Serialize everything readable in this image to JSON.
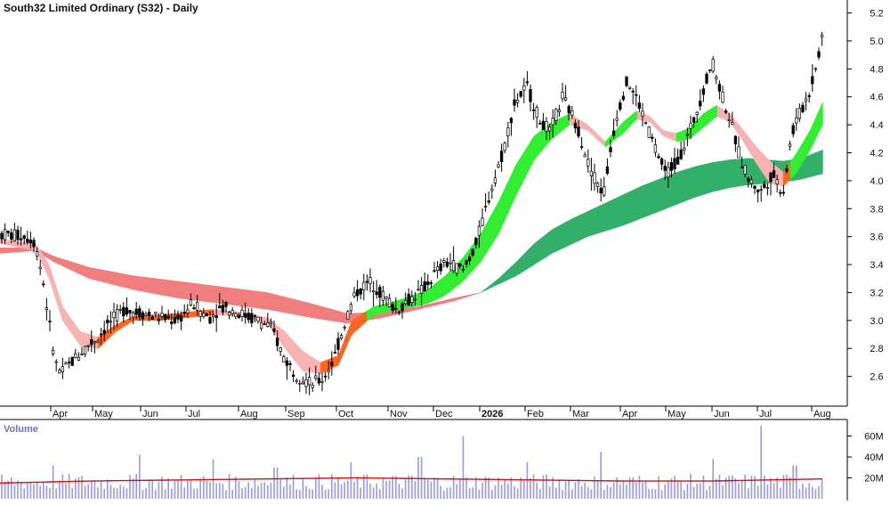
{
  "title": "South32 Limited Ordinary (S32) - Daily",
  "volume_label": "Volume",
  "chart_data": {
    "type": "line",
    "title": "South32 Limited Ordinary (S32) - Daily",
    "x_tick_labels": [
      "Apr",
      "May",
      "Jun",
      "Jul",
      "Aug",
      "Sep",
      "Oct",
      "Nov",
      "Dec",
      "2026",
      "Feb",
      "Mar",
      "Apr",
      "May",
      "Jun",
      "Jul",
      "Aug"
    ],
    "price_axis": {
      "ticks": [
        2.6,
        2.8,
        3.0,
        3.2,
        3.4,
        3.6,
        3.8,
        4.0,
        4.2,
        4.4,
        4.6,
        4.8,
        5.0,
        5.2
      ],
      "ylim": [
        2.4,
        5.28
      ],
      "grid": false
    },
    "volume_axis": {
      "tick_labels": [
        "20M",
        "40M",
        "60M"
      ],
      "ticks": [
        20,
        40,
        60
      ],
      "ylim": [
        0,
        75
      ]
    },
    "price_path": [
      [
        0,
        3.62
      ],
      [
        30,
        3.6
      ],
      [
        40,
        3.55
      ],
      [
        48,
        3.3
      ],
      [
        55,
        3.0
      ],
      [
        62,
        2.7
      ],
      [
        68,
        2.62
      ],
      [
        80,
        2.7
      ],
      [
        95,
        2.8
      ],
      [
        110,
        2.88
      ],
      [
        125,
        3.0
      ],
      [
        140,
        3.08
      ],
      [
        160,
        3.05
      ],
      [
        180,
        3.02
      ],
      [
        200,
        3.0
      ],
      [
        215,
        3.12
      ],
      [
        235,
        3.02
      ],
      [
        250,
        3.1
      ],
      [
        270,
        3.05
      ],
      [
        290,
        3.0
      ],
      [
        305,
        2.95
      ],
      [
        320,
        2.72
      ],
      [
        335,
        2.6
      ],
      [
        350,
        2.55
      ],
      [
        362,
        2.58
      ],
      [
        375,
        2.72
      ],
      [
        388,
        3.0
      ],
      [
        400,
        3.2
      ],
      [
        415,
        3.28
      ],
      [
        430,
        3.18
      ],
      [
        445,
        3.08
      ],
      [
        460,
        3.15
      ],
      [
        475,
        3.22
      ],
      [
        490,
        3.35
      ],
      [
        505,
        3.42
      ],
      [
        520,
        3.35
      ],
      [
        535,
        3.55
      ],
      [
        550,
        3.9
      ],
      [
        565,
        4.2
      ],
      [
        578,
        4.55
      ],
      [
        592,
        4.68
      ],
      [
        605,
        4.45
      ],
      [
        618,
        4.35
      ],
      [
        632,
        4.6
      ],
      [
        648,
        4.4
      ],
      [
        662,
        4.1
      ],
      [
        678,
        3.9
      ],
      [
        692,
        4.45
      ],
      [
        705,
        4.72
      ],
      [
        718,
        4.55
      ],
      [
        732,
        4.3
      ],
      [
        748,
        4.05
      ],
      [
        762,
        4.15
      ],
      [
        775,
        4.35
      ],
      [
        788,
        4.6
      ],
      [
        800,
        4.85
      ],
      [
        812,
        4.6
      ],
      [
        822,
        4.4
      ],
      [
        832,
        4.15
      ],
      [
        842,
        4.0
      ],
      [
        855,
        3.92
      ],
      [
        868,
        4.05
      ],
      [
        880,
        3.92
      ],
      [
        890,
        4.35
      ],
      [
        900,
        4.5
      ],
      [
        910,
        4.65
      ],
      [
        918,
        4.85
      ],
      [
        924,
        5.05
      ]
    ],
    "ema_bands": [
      {
        "name": "long-term",
        "upper": [
          [
            0,
            3.52
          ],
          [
            40,
            3.52
          ],
          [
            60,
            3.46
          ],
          [
            100,
            3.38
          ],
          [
            150,
            3.32
          ],
          [
            200,
            3.28
          ],
          [
            250,
            3.24
          ],
          [
            300,
            3.2
          ],
          [
            350,
            3.12
          ],
          [
            390,
            3.05
          ],
          [
            430,
            3.06
          ],
          [
            470,
            3.1
          ],
          [
            510,
            3.16
          ],
          [
            540,
            3.2
          ],
          [
            560,
            3.3
          ],
          [
            580,
            3.42
          ],
          [
            600,
            3.55
          ],
          [
            620,
            3.65
          ],
          [
            640,
            3.72
          ],
          [
            660,
            3.78
          ],
          [
            680,
            3.84
          ],
          [
            700,
            3.9
          ],
          [
            720,
            3.96
          ],
          [
            740,
            4.01
          ],
          [
            760,
            4.06
          ],
          [
            780,
            4.1
          ],
          [
            800,
            4.13
          ],
          [
            820,
            4.15
          ],
          [
            840,
            4.16
          ],
          [
            860,
            4.15
          ],
          [
            880,
            4.14
          ],
          [
            900,
            4.16
          ],
          [
            924,
            4.22
          ]
        ],
        "lower": [
          [
            0,
            3.48
          ],
          [
            40,
            3.5
          ],
          [
            60,
            3.42
          ],
          [
            100,
            3.3
          ],
          [
            150,
            3.22
          ],
          [
            200,
            3.16
          ],
          [
            250,
            3.12
          ],
          [
            300,
            3.08
          ],
          [
            350,
            3.02
          ],
          [
            390,
            2.98
          ],
          [
            430,
            3.02
          ],
          [
            470,
            3.08
          ],
          [
            510,
            3.14
          ],
          [
            540,
            3.2
          ],
          [
            560,
            3.26
          ],
          [
            580,
            3.32
          ],
          [
            600,
            3.4
          ],
          [
            620,
            3.48
          ],
          [
            640,
            3.54
          ],
          [
            660,
            3.6
          ],
          [
            680,
            3.64
          ],
          [
            700,
            3.68
          ],
          [
            720,
            3.73
          ],
          [
            740,
            3.78
          ],
          [
            760,
            3.83
          ],
          [
            780,
            3.88
          ],
          [
            800,
            3.92
          ],
          [
            820,
            3.95
          ],
          [
            840,
            3.97
          ],
          [
            860,
            3.98
          ],
          [
            880,
            3.99
          ],
          [
            900,
            4.01
          ],
          [
            924,
            4.05
          ]
        ]
      },
      {
        "name": "short-term",
        "upper": [
          [
            0,
            3.58
          ],
          [
            40,
            3.55
          ],
          [
            55,
            3.4
          ],
          [
            70,
            3.1
          ],
          [
            90,
            2.92
          ],
          [
            110,
            2.88
          ],
          [
            130,
            2.97
          ],
          [
            150,
            3.03
          ],
          [
            180,
            3.04
          ],
          [
            210,
            3.06
          ],
          [
            240,
            3.08
          ],
          [
            270,
            3.06
          ],
          [
            300,
            3.02
          ],
          [
            320,
            2.92
          ],
          [
            340,
            2.78
          ],
          [
            360,
            2.7
          ],
          [
            380,
            2.75
          ],
          [
            395,
            3.0
          ],
          [
            420,
            3.1
          ],
          [
            450,
            3.15
          ],
          [
            480,
            3.22
          ],
          [
            500,
            3.32
          ],
          [
            520,
            3.45
          ],
          [
            540,
            3.62
          ],
          [
            560,
            3.85
          ],
          [
            580,
            4.12
          ],
          [
            600,
            4.32
          ],
          [
            620,
            4.42
          ],
          [
            640,
            4.48
          ],
          [
            660,
            4.4
          ],
          [
            680,
            4.28
          ],
          [
            700,
            4.42
          ],
          [
            715,
            4.5
          ],
          [
            730,
            4.46
          ],
          [
            745,
            4.36
          ],
          [
            760,
            4.34
          ],
          [
            775,
            4.38
          ],
          [
            790,
            4.48
          ],
          [
            805,
            4.54
          ],
          [
            820,
            4.48
          ],
          [
            835,
            4.36
          ],
          [
            850,
            4.24
          ],
          [
            865,
            4.14
          ],
          [
            880,
            4.06
          ],
          [
            895,
            4.2
          ],
          [
            910,
            4.36
          ],
          [
            924,
            4.56
          ]
        ],
        "lower": [
          [
            0,
            3.55
          ],
          [
            40,
            3.5
          ],
          [
            55,
            3.3
          ],
          [
            70,
            3.0
          ],
          [
            90,
            2.82
          ],
          [
            110,
            2.8
          ],
          [
            130,
            2.92
          ],
          [
            150,
            3.0
          ],
          [
            180,
            3.0
          ],
          [
            210,
            3.02
          ],
          [
            240,
            3.04
          ],
          [
            270,
            3.03
          ],
          [
            300,
            2.98
          ],
          [
            320,
            2.8
          ],
          [
            340,
            2.64
          ],
          [
            360,
            2.62
          ],
          [
            380,
            2.68
          ],
          [
            395,
            2.9
          ],
          [
            420,
            3.04
          ],
          [
            450,
            3.08
          ],
          [
            480,
            3.12
          ],
          [
            500,
            3.18
          ],
          [
            520,
            3.28
          ],
          [
            540,
            3.42
          ],
          [
            560,
            3.62
          ],
          [
            580,
            3.9
          ],
          [
            600,
            4.15
          ],
          [
            620,
            4.3
          ],
          [
            640,
            4.4
          ],
          [
            660,
            4.36
          ],
          [
            680,
            4.24
          ],
          [
            700,
            4.34
          ],
          [
            715,
            4.44
          ],
          [
            730,
            4.42
          ],
          [
            745,
            4.32
          ],
          [
            760,
            4.28
          ],
          [
            775,
            4.3
          ],
          [
            790,
            4.38
          ],
          [
            805,
            4.46
          ],
          [
            820,
            4.42
          ],
          [
            835,
            4.28
          ],
          [
            850,
            4.12
          ],
          [
            865,
            3.98
          ],
          [
            880,
            3.96
          ],
          [
            895,
            4.06
          ],
          [
            910,
            4.22
          ],
          [
            924,
            4.4
          ]
        ]
      }
    ],
    "volume_ma": [
      [
        0,
        15
      ],
      [
        100,
        17
      ],
      [
        200,
        18
      ],
      [
        300,
        19
      ],
      [
        400,
        20
      ],
      [
        500,
        19
      ],
      [
        600,
        18
      ],
      [
        700,
        17
      ],
      [
        800,
        17
      ],
      [
        924,
        19
      ]
    ],
    "volume_spikes": [
      [
        60,
        32
      ],
      [
        157,
        42
      ],
      [
        240,
        38
      ],
      [
        310,
        30
      ],
      [
        393,
        35
      ],
      [
        472,
        40
      ],
      [
        521,
        60
      ],
      [
        594,
        35
      ],
      [
        676,
        45
      ],
      [
        800,
        38
      ],
      [
        856,
        70
      ],
      [
        893,
        32
      ]
    ],
    "colors": {
      "up_band": "#33ee33",
      "down_band": "#ff6622",
      "long_band": "#33b06b",
      "long_band_down": "#f07f7f",
      "short_band_down_light": "#f7b3b3",
      "candle": "#000000",
      "volume_bar": "#9a9ae0",
      "volume_ma": "#d41010",
      "axis_text": "#111111"
    }
  }
}
